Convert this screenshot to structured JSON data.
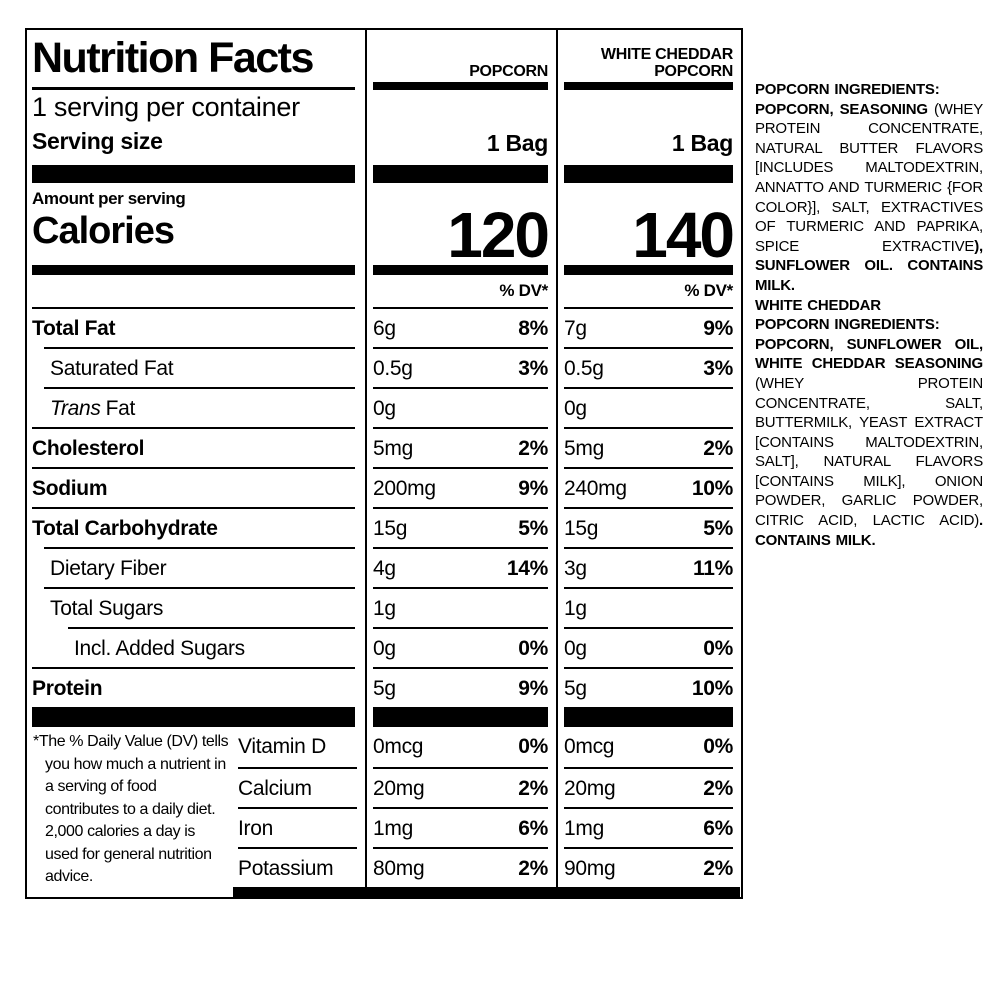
{
  "page": {
    "background_color": "#ffffff",
    "text_color": "#000000"
  },
  "label": {
    "title": "Nutrition Facts",
    "servings_per_container": "1 serving per container",
    "serving_size_label": "Serving size",
    "amount_per_serving_label": "Amount per serving",
    "calories_label": "Calories",
    "dv_header": "% DV*",
    "columns": [
      {
        "name": "POPCORN",
        "serving_size": "1 Bag",
        "calories": "120"
      },
      {
        "name": "WHITE CHEDDAR POPCORN",
        "serving_size": "1 Bag",
        "calories": "140"
      }
    ],
    "nutrients": [
      {
        "name": "Total Fat",
        "popcorn_amount": "6g",
        "popcorn_dv": "8%",
        "cheddar_amount": "7g",
        "cheddar_dv": "9%"
      },
      {
        "name": "Saturated Fat",
        "popcorn_amount": "0.5g",
        "popcorn_dv": "3%",
        "cheddar_amount": "0.5g",
        "cheddar_dv": "3%"
      },
      {
        "name_italic": "Trans",
        "name": "Fat",
        "popcorn_amount": "0g",
        "popcorn_dv": "",
        "cheddar_amount": "0g",
        "cheddar_dv": ""
      },
      {
        "name": "Cholesterol",
        "popcorn_amount": "5mg",
        "popcorn_dv": "2%",
        "cheddar_amount": "5mg",
        "cheddar_dv": "2%"
      },
      {
        "name": "Sodium",
        "popcorn_amount": "200mg",
        "popcorn_dv": "9%",
        "cheddar_amount": "240mg",
        "cheddar_dv": "10%"
      },
      {
        "name": "Total Carbohydrate",
        "popcorn_amount": "15g",
        "popcorn_dv": "5%",
        "cheddar_amount": "15g",
        "cheddar_dv": "5%"
      },
      {
        "name": "Dietary Fiber",
        "popcorn_amount": "4g",
        "popcorn_dv": "14%",
        "cheddar_amount": "3g",
        "cheddar_dv": "11%"
      },
      {
        "name": "Total Sugars",
        "popcorn_amount": "1g",
        "popcorn_dv": "",
        "cheddar_amount": "1g",
        "cheddar_dv": ""
      },
      {
        "name": "Incl. Added Sugars",
        "popcorn_amount": "0g",
        "popcorn_dv": "0%",
        "cheddar_amount": "0g",
        "cheddar_dv": "0%"
      },
      {
        "name": "Protein",
        "popcorn_amount": "5g",
        "popcorn_dv": "9%",
        "cheddar_amount": "5g",
        "cheddar_dv": "10%"
      }
    ],
    "vitamins": [
      {
        "name": "Vitamin D",
        "popcorn_amount": "0mcg",
        "popcorn_dv": "0%",
        "cheddar_amount": "0mcg",
        "cheddar_dv": "0%"
      },
      {
        "name": "Calcium",
        "popcorn_amount": "20mg",
        "popcorn_dv": "2%",
        "cheddar_amount": "20mg",
        "cheddar_dv": "2%"
      },
      {
        "name": "Iron",
        "popcorn_amount": "1mg",
        "popcorn_dv": "6%",
        "cheddar_amount": "1mg",
        "cheddar_dv": "6%"
      },
      {
        "name": "Potassium",
        "popcorn_amount": "80mg",
        "popcorn_dv": "2%",
        "cheddar_amount": "90mg",
        "cheddar_dv": "2%"
      }
    ],
    "footnote": "*The % Daily Value (DV) tells you how much a nutrient in a serving of food contributes to a daily diet. 2,000 calories a day is used for general nutrition advice."
  },
  "ingredients": {
    "segments": [
      {
        "text": "POPCORN INGREDIENTS:",
        "bold": true
      },
      {
        "text": "POPCORN, SEASONING ",
        "bold": true
      },
      {
        "text": "(WHEY PROTEIN CONCENTRATE, NATURAL BUTTER FLAVORS [INCLUDES MALTODEXTRIN, ANNATTO AND TURMERIC {FOR COLOR}], SALT, EXTRACTIVES OF TURMERIC AND PAPRIKA, SPICE EXTRACTIVE",
        "bold": false
      },
      {
        "text": "), SUNFLOWER OIL. CONTAINS MILK.",
        "bold": true
      },
      {
        "text": "WHITE CHEDDAR",
        "bold": true
      },
      {
        "text": "POPCORN INGREDIENTS:",
        "bold": true
      },
      {
        "text": "POPCORN, SUNFLOWER OIL, WHITE CHEDDAR SEASONING ",
        "bold": true
      },
      {
        "text": "(WHEY PROTEIN CONCENTRATE, SALT, BUTTERMILK, YEAST EXTRACT [CONTAINS MALTODEXTRIN, SALT], NATURAL FLAVORS [CONTAINS MILK], ONION POWDER, GARLIC POWDER, CITRIC ACID, LACTIC ACID)",
        "bold": false
      },
      {
        "text": ". CONTAINS MILK.",
        "bold": true
      }
    ]
  }
}
